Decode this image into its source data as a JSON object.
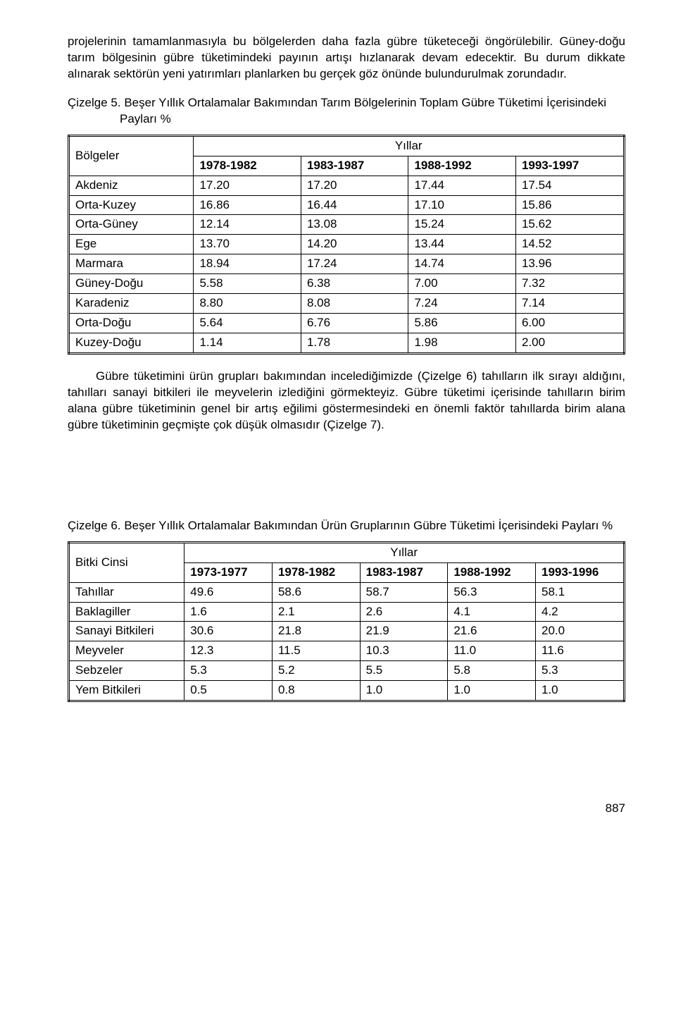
{
  "para1": "projelerinin tamamlanmasıyla bu bölgelerden daha fazla gübre tüketeceği öngörülebilir. Güney-doğu tarım bölgesinin gübre tüketimindeki payının artışı hızlanarak devam edecektir. Bu durum dikkate alınarak sektörün yeni yatırımları planlarken bu gerçek göz önünde bulundurulmak zorundadır.",
  "table5": {
    "caption": "Çizelge 5. Beşer Yıllık Ortalamalar Bakımından Tarım Bölgelerinin Toplam Gübre Tüketimi İçerisindeki Payları %",
    "row_header": "Bölgeler",
    "years_header": "Yıllar",
    "periods": [
      "1978-1982",
      "1983-1987",
      "1988-1992",
      "1993-1997"
    ],
    "rows": [
      {
        "label": "Akdeniz",
        "v": [
          "17.20",
          "17.20",
          "17.44",
          "17.54"
        ]
      },
      {
        "label": "Orta-Kuzey",
        "v": [
          "16.86",
          "16.44",
          "17.10",
          "15.86"
        ]
      },
      {
        "label": "Orta-Güney",
        "v": [
          "12.14",
          "13.08",
          "15.24",
          "15.62"
        ]
      },
      {
        "label": "Ege",
        "v": [
          "13.70",
          "14.20",
          "13.44",
          "14.52"
        ]
      },
      {
        "label": "Marmara",
        "v": [
          "18.94",
          "17.24",
          "14.74",
          "13.96"
        ]
      },
      {
        "label": "Güney-Doğu",
        "v": [
          "5.58",
          "6.38",
          "7.00",
          "7.32"
        ]
      },
      {
        "label": "Karadeniz",
        "v": [
          "8.80",
          "8.08",
          "7.24",
          "7.14"
        ]
      },
      {
        "label": "Orta-Doğu",
        "v": [
          "5.64",
          "6.76",
          "5.86",
          "6.00"
        ]
      },
      {
        "label": "Kuzey-Doğu",
        "v": [
          "1.14",
          "1.78",
          "1.98",
          "2.00"
        ]
      }
    ]
  },
  "para2": "Gübre tüketimini ürün grupları bakımından incelediğimizde (Çizelge 6) tahılların ilk sırayı aldığını, tahılları sanayi bitkileri ile meyvelerin izlediğini görmekteyiz. Gübre tüketimi içerisinde tahılların birim alana gübre tüketiminin genel bir artış eğilimi göstermesindeki en önemli faktör tahıllarda birim alana gübre tüketiminin geçmişte çok düşük olmasıdır (Çizelge 7).",
  "table6": {
    "caption": "Çizelge 6. Beşer Yıllık Ortalamalar Bakımından Ürün Gruplarının Gübre Tüketimi İçerisindeki Payları %",
    "row_header": "Bitki Cinsi",
    "years_header": "Yıllar",
    "periods": [
      "1973-1977",
      "1978-1982",
      "1983-1987",
      "1988-1992",
      "1993-1996"
    ],
    "rows": [
      {
        "label": "Tahıllar",
        "v": [
          "49.6",
          "58.6",
          "58.7",
          "56.3",
          "58.1"
        ]
      },
      {
        "label": "Baklagiller",
        "v": [
          "1.6",
          "2.1",
          "2.6",
          "4.1",
          "4.2"
        ]
      },
      {
        "label": "Sanayi Bitkileri",
        "v": [
          "30.6",
          "21.8",
          "21.9",
          "21.6",
          "20.0"
        ]
      },
      {
        "label": "Meyveler",
        "v": [
          "12.3",
          "11.5",
          "10.3",
          "11.0",
          "11.6"
        ]
      },
      {
        "label": "Sebzeler",
        "v": [
          "5.3",
          "5.2",
          "5.5",
          "5.8",
          "5.3"
        ]
      },
      {
        "label": "Yem Bitkileri",
        "v": [
          "0.5",
          "0.8",
          "1.0",
          "1.0",
          "1.0"
        ]
      }
    ]
  },
  "page_number": "887"
}
